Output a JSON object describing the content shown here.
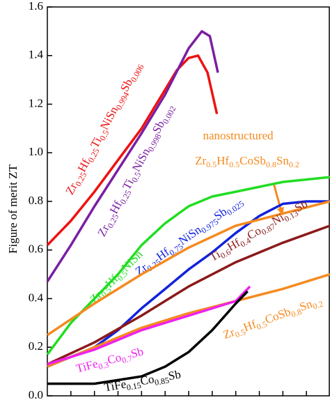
{
  "chart_data": {
    "type": "line",
    "y_label": "Figure of merit ZT",
    "xlim": [
      300,
      900
    ],
    "xticks": [
      350,
      400,
      450,
      500,
      550,
      600,
      650,
      700,
      750,
      800,
      850
    ],
    "ylim": [
      0,
      1.6
    ],
    "yticks": [
      {
        "value": 0,
        "label": "0.0"
      },
      0.2,
      0.4,
      0.6,
      0.8,
      {
        "value": 1,
        "label": "1.0"
      },
      1.2,
      1.4,
      1.6
    ],
    "annotation": "nanostructured",
    "series": [
      {
        "name": "Zr0.25Hf0.25Ti0.5NiSn0.994Sb0.006",
        "color": "#ee1111",
        "x": [
          300,
          350,
          400,
          450,
          500,
          550,
          575,
          600,
          620,
          640,
          660
        ],
        "values": [
          0.62,
          0.72,
          0.84,
          0.97,
          1.1,
          1.26,
          1.34,
          1.39,
          1.4,
          1.33,
          1.16
        ]
      },
      {
        "name": "Zr0.25Hf0.25Ti0.5NiSn0.998Sb0.002",
        "color": "#7a1fa2",
        "x": [
          300,
          350,
          400,
          450,
          500,
          550,
          600,
          628,
          645,
          662
        ],
        "values": [
          0.47,
          0.62,
          0.78,
          0.93,
          1.08,
          1.24,
          1.43,
          1.5,
          1.48,
          1.33
        ]
      },
      {
        "name": "Zr0.5Hf0.5NiSn",
        "color": "#22dd22",
        "x": [
          300,
          350,
          400,
          450,
          500,
          550,
          600,
          650,
          700,
          750,
          800,
          900
        ],
        "values": [
          0.17,
          0.3,
          0.4,
          0.5,
          0.62,
          0.71,
          0.78,
          0.82,
          0.84,
          0.86,
          0.88,
          0.9
        ]
      },
      {
        "name": "Zr0.25Hf0.75NiSn0.975Sb0.025",
        "color": "#1122dd",
        "x": [
          300,
          400,
          450,
          500,
          550,
          600,
          650,
          700,
          750,
          800,
          850,
          900
        ],
        "values": [
          0.12,
          0.2,
          0.27,
          0.36,
          0.44,
          0.52,
          0.59,
          0.67,
          0.74,
          0.79,
          0.8,
          0.8
        ]
      },
      {
        "name": "Zr0.5Hf0.5CoSb0.8Sn0.2",
        "color": "#f58a1f",
        "x": [
          300,
          400,
          500,
          600,
          700,
          800,
          900
        ],
        "values": [
          0.25,
          0.38,
          0.5,
          0.61,
          0.7,
          0.75,
          0.8
        ]
      },
      {
        "name": "Ti0.6Hf0.4Co0.87Ni0.13Sb",
        "color": "#8b1a1a",
        "x": [
          300,
          400,
          500,
          600,
          700,
          800,
          900
        ],
        "values": [
          0.13,
          0.22,
          0.33,
          0.45,
          0.55,
          0.63,
          0.7
        ]
      },
      {
        "name": "Zr0.5Hf0.5CoSb0.8Sn0.2",
        "color": "#f58a1f",
        "x": [
          300,
          400,
          500,
          600,
          700,
          800,
          900
        ],
        "values": [
          0.12,
          0.2,
          0.28,
          0.34,
          0.39,
          0.44,
          0.5
        ]
      },
      {
        "name": "TiFe0.3Co0.7Sb",
        "color": "#ee22ee",
        "x": [
          300,
          400,
          500,
          600,
          700,
          730
        ],
        "values": [
          0.13,
          0.19,
          0.27,
          0.33,
          0.39,
          0.45
        ]
      },
      {
        "name": "TiFe0.15Co0.85Sb",
        "color": "#000000",
        "x": [
          300,
          400,
          500,
          550,
          600,
          650,
          700,
          725
        ],
        "values": [
          0.05,
          0.05,
          0.08,
          0.12,
          0.18,
          0.27,
          0.38,
          0.43
        ]
      }
    ]
  }
}
